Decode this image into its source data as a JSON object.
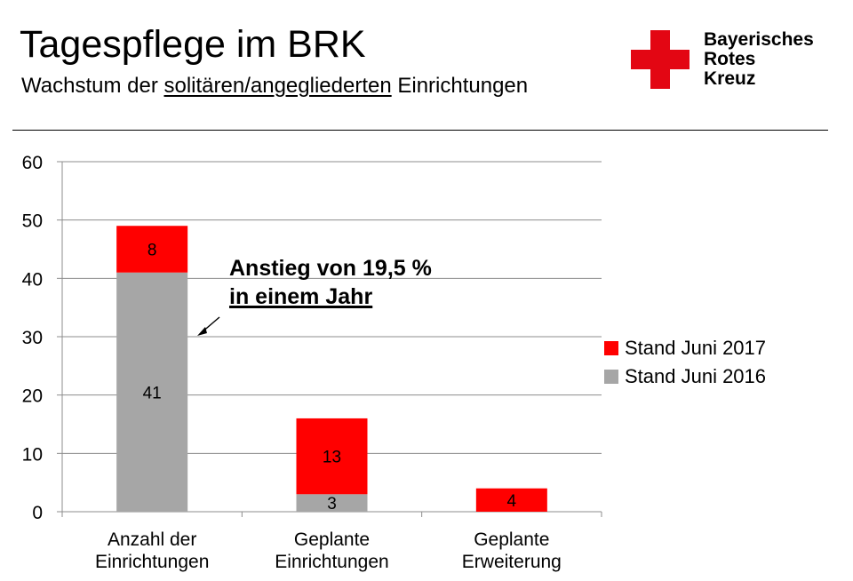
{
  "header": {
    "title": "Tagespflege im BRK",
    "subtitle_before": "Wachstum der ",
    "subtitle_underlined": "solitären/angegliederten",
    "subtitle_after": " Einrichtungen"
  },
  "logo": {
    "line1": "Bayerisches",
    "line2": "Rotes",
    "line3": "Kreuz",
    "color": "#e30613"
  },
  "annotation": {
    "line1": "Anstieg von 19,5 %",
    "line2": "in einem Jahr"
  },
  "colors": {
    "stand_2017": "#ff0000",
    "stand_2016": "#a6a6a6",
    "grid": "#8c8c8c"
  },
  "chart_data": {
    "type": "bar",
    "stacked": true,
    "categories": [
      [
        "Anzahl der",
        "Einrichtungen"
      ],
      [
        "Geplante",
        "Einrichtungen"
      ],
      [
        "Geplante",
        "Erweiterung"
      ]
    ],
    "series": [
      {
        "name": "Stand Juni 2016",
        "values": [
          41,
          3,
          0
        ],
        "labels": [
          "41",
          "3",
          ""
        ],
        "color": "#a6a6a6"
      },
      {
        "name": "Stand Juni 2017",
        "values": [
          8,
          13,
          4
        ],
        "labels": [
          "8",
          "13",
          "4"
        ],
        "color": "#ff0000"
      }
    ],
    "ylim": [
      0,
      60
    ],
    "yticks": [
      0,
      10,
      20,
      30,
      40,
      50,
      60
    ],
    "grid": true,
    "legend": "right",
    "xlabel": "",
    "ylabel": ""
  }
}
